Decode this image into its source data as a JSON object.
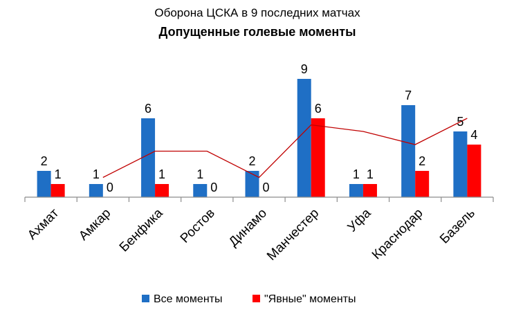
{
  "chart_data": {
    "type": "bar",
    "title": "Оборона ЦСКА в 9 последних матчах",
    "subtitle": "Допущенные голевые моменты",
    "categories": [
      "Ахмат",
      "Амкар",
      "Бенфика",
      "Ростов",
      "Динамо",
      "Манчестер",
      "Уфа",
      "Краснодар",
      "Базель"
    ],
    "series": [
      {
        "name": "Все моменты",
        "values": [
          2,
          1,
          6,
          1,
          2,
          9,
          1,
          7,
          5
        ],
        "color": "#1F6FC5"
      },
      {
        "name": "\"Явные\" моменты",
        "values": [
          1,
          0,
          1,
          0,
          0,
          6,
          1,
          2,
          4
        ],
        "color": "#FF0000"
      }
    ],
    "trendline": {
      "type": "moving-average",
      "color": "#C00000"
    },
    "ylim": [
      0,
      10
    ],
    "grid": false,
    "legend": "bottom"
  }
}
